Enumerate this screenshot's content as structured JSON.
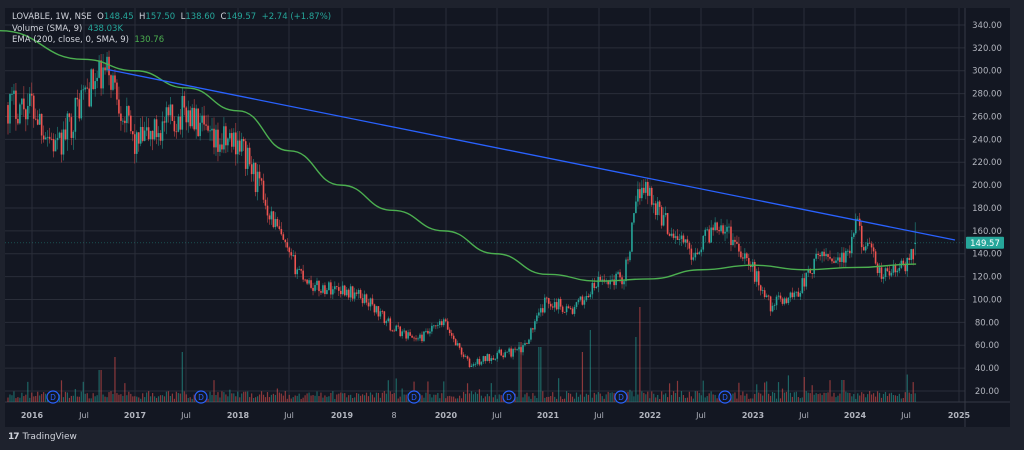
{
  "legend": {
    "symbol_line": "LOVABLE, 1W, NSE",
    "open_label": "O",
    "open": "148.45",
    "high_label": "H",
    "high": "157.50",
    "low_label": "L",
    "low": "138.60",
    "close_label": "C",
    "close": "149.57",
    "change": "+2.74 (+1.87%)",
    "volume_label": "Volume (SMA, 9)",
    "volume_value": "438.03K",
    "ema_label": "EMA (200, close, 0, SMA, 9)",
    "ema_value": "130.76"
  },
  "price_axis": {
    "ticks": [
      "340.00",
      "320.00",
      "300.00",
      "280.00",
      "260.00",
      "240.00",
      "220.00",
      "200.00",
      "180.00",
      "160.00",
      "140.00",
      "120.00",
      "100.00",
      "80.00",
      "60.00",
      "40.00",
      "20.00"
    ],
    "last_price_label": "149.57"
  },
  "time_axis": {
    "labels": [
      "2016",
      "Jul",
      "2017",
      "Jul",
      "2018",
      "Jul",
      "2019",
      "8",
      "2020",
      "Jul",
      "2021",
      "Jul",
      "2022",
      "Jul",
      "2023",
      "Jul",
      "2024",
      "Jul",
      "2025"
    ]
  },
  "dividend_marker_label": "D",
  "footer": {
    "brand": "TradingView",
    "logo_glyph": "17"
  },
  "colors": {
    "background": "#131722",
    "panel": "#1e222d",
    "grid": "#2a2e39",
    "up": "#26a69a",
    "down": "#ef5350",
    "ema": "#4caf50",
    "trendline": "#2962ff",
    "last_price_bg": "#26a69a",
    "axis_text": "#b2b5be",
    "dividend": "#2962ff"
  },
  "chart_data": {
    "type": "candlestick",
    "title": "LOVABLE, 1W, NSE",
    "symbol": "LOVABLE",
    "interval": "1W",
    "exchange": "NSE",
    "last_bar": {
      "open": 148.45,
      "high": 157.5,
      "low": 138.6,
      "close": 149.57,
      "change": 2.74,
      "change_pct": 1.87
    },
    "ylim": [
      0,
      350
    ],
    "y_ticks": [
      20,
      40,
      60,
      80,
      100,
      120,
      140,
      160,
      180,
      200,
      220,
      240,
      260,
      280,
      300,
      320,
      340
    ],
    "x_ticks": [
      "2016",
      "Jul",
      "2017",
      "Jul",
      "2018",
      "Jul",
      "2019",
      "8",
      "2020",
      "Jul",
      "2021",
      "Jul",
      "2022",
      "Jul",
      "2023",
      "Jul",
      "2024",
      "Jul",
      "2025"
    ],
    "grid": true,
    "price_path_approx": {
      "x": [
        "2016-01",
        "2016-04",
        "2016-07",
        "2016-10",
        "2017-01",
        "2017-04",
        "2017-07",
        "2017-10",
        "2018-01",
        "2018-04",
        "2018-07",
        "2018-10",
        "2019-01",
        "2019-04",
        "2019-07",
        "2019-10",
        "2020-01",
        "2020-04",
        "2020-07",
        "2020-10",
        "2021-01",
        "2021-04",
        "2021-07",
        "2021-10",
        "2021-12",
        "2022-03",
        "2022-06",
        "2022-09",
        "2022-12",
        "2023-03",
        "2023-06",
        "2023-09",
        "2023-12",
        "2024-01",
        "2024-04",
        "2024-07",
        "2024-08"
      ],
      "close": [
        270,
        230,
        280,
        300,
        235,
        250,
        265,
        235,
        240,
        190,
        135,
        110,
        110,
        100,
        75,
        65,
        80,
        42,
        52,
        55,
        100,
        90,
        115,
        120,
        205,
        165,
        140,
        170,
        140,
        95,
        105,
        140,
        135,
        165,
        120,
        130,
        150
      ]
    },
    "series": [
      {
        "name": "EMA (200, close, 0, SMA, 9)",
        "type": "line",
        "last": 130.76,
        "x": [
          "2015-12",
          "2016-07",
          "2017-01",
          "2017-07",
          "2018-01",
          "2018-07",
          "2019-01",
          "2019-07",
          "2020-01",
          "2020-07",
          "2021-01",
          "2021-07",
          "2022-01",
          "2022-07",
          "2023-01",
          "2023-07",
          "2024-01",
          "2024-08"
        ],
        "values": [
          335,
          310,
          300,
          285,
          265,
          230,
          200,
          178,
          160,
          140,
          122,
          116,
          118,
          126,
          130,
          126,
          128,
          131
        ]
      },
      {
        "name": "Trendline",
        "type": "line",
        "points": [
          [
            "2016-10",
            301
          ],
          [
            "2025-01",
            152
          ]
        ]
      },
      {
        "name": "Volume (SMA, 9)",
        "type": "bar",
        "last": "438.03K"
      }
    ],
    "annotations": [
      "Dividend markers (D) at ~2016-05, 2017-09, 2019-11, 2020-09, 2021-10, 2022-10"
    ]
  }
}
